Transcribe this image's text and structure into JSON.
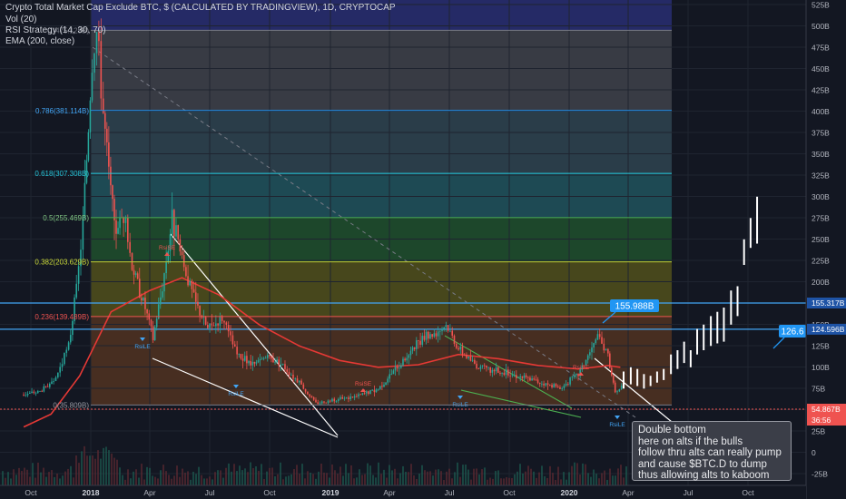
{
  "header": {
    "title": "Crypto Total Market Cap Exclude BTC, $ (CALCULATED BY TRADINGVIEW), 1D, CRYPTOCAP",
    "indicators": [
      "Vol (20)",
      "RSI Strategy (14, 30, 70)",
      "EMA (200, close)"
    ]
  },
  "colors": {
    "background": "#131722",
    "ema": "#e53935",
    "trendline": "#ffffff",
    "dashed_line": "#787b86",
    "hline": "#42a5f5",
    "label_fill": "#2196f3",
    "price_up": "#26a69a",
    "price_down": "#ef5350"
  },
  "chart_data": {
    "type": "line",
    "title": "Crypto Total Market Cap Exclude BTC, $ (CALCULATED BY TRADINGVIEW), 1D, CRYPTOCAP",
    "x_ticks": [
      "Oct",
      "2018",
      "Apr",
      "Jul",
      "Oct",
      "2019",
      "Apr",
      "Jul",
      "Oct",
      "2020",
      "Apr",
      "Jul",
      "Oct"
    ],
    "y_ticks": [
      "525B",
      "500B",
      "475B",
      "450B",
      "425B",
      "400B",
      "375B",
      "350B",
      "325B",
      "300B",
      "275B",
      "250B",
      "225B",
      "200B",
      "175B",
      "150B",
      "125B",
      "100B",
      "75B",
      "50B",
      "25B",
      "0",
      "-25B"
    ],
    "ylim_billions": [
      -25,
      525
    ],
    "price_billions": {
      "x": [
        "2017-09-20",
        "2017-10-15",
        "2017-11-05",
        "2017-11-28",
        "2017-12-10",
        "2017-12-20",
        "2018-01-03",
        "2018-01-10",
        "2018-01-20",
        "2018-02-06",
        "2018-02-20",
        "2018-03-05",
        "2018-03-25",
        "2018-04-06",
        "2018-04-20",
        "2018-05-05",
        "2018-05-20",
        "2018-06-10",
        "2018-06-28",
        "2018-07-20",
        "2018-08-12",
        "2018-09-05",
        "2018-09-25",
        "2018-10-15",
        "2018-11-15",
        "2018-12-10",
        "2019-01-10",
        "2019-02-10",
        "2019-03-15",
        "2019-04-10",
        "2019-05-15",
        "2019-06-26",
        "2019-07-15",
        "2019-08-15",
        "2019-09-20",
        "2019-10-15",
        "2019-11-20",
        "2019-12-18",
        "2020-01-15",
        "2020-02-14",
        "2020-03-01",
        "2020-03-12",
        "2020-03-25"
      ],
      "y": [
        48,
        52,
        62,
        105,
        170,
        250,
        440,
        475,
        380,
        240,
        260,
        200,
        150,
        115,
        175,
        255,
        205,
        155,
        125,
        138,
        95,
        82,
        92,
        87,
        62,
        38,
        42,
        46,
        55,
        78,
        108,
        130,
        102,
        80,
        74,
        70,
        62,
        55,
        72,
        115,
        95,
        48,
        60
      ]
    },
    "ema_billions": {
      "x": [
        "2017-09-20",
        "2017-11-01",
        "2017-12-15",
        "2018-02-01",
        "2018-04-01",
        "2018-05-20",
        "2018-07-15",
        "2018-09-15",
        "2018-11-15",
        "2019-01-15",
        "2019-03-15",
        "2019-05-15",
        "2019-07-15",
        "2019-09-15",
        "2019-11-15",
        "2020-01-15",
        "2020-03-01",
        "2020-03-20"
      ],
      "y": [
        10,
        25,
        70,
        145,
        170,
        185,
        165,
        130,
        105,
        88,
        80,
        83,
        95,
        90,
        82,
        78,
        82,
        80
      ]
    },
    "fibonacci": [
      {
        "label": "1(475.128B)",
        "value": 475.128
      },
      {
        "label": "0.786(381.114B)",
        "value": 381.114
      },
      {
        "label": "0.618(307.308B)",
        "value": 307.308
      },
      {
        "label": "0.5(255.469B)",
        "value": 255.469
      },
      {
        "label": "0.382(203.629B)",
        "value": 203.629
      },
      {
        "label": "0.236(139.489B)",
        "value": 139.489
      },
      {
        "label": "0(35.809B)",
        "value": 35.809
      }
    ],
    "horizontal_lines": [
      {
        "value": 155.317,
        "label": "155.317B"
      },
      {
        "value": 124.596,
        "label": "124.596B"
      }
    ],
    "price_tags": [
      {
        "value": 54.867,
        "label": "54.867B",
        "color": "#ef5350"
      },
      {
        "value": 36.56,
        "label": "36:56",
        "color": "#ef5350"
      }
    ],
    "callouts": [
      {
        "label": "155.988B"
      },
      {
        "label": "126.6"
      }
    ],
    "signals": [
      {
        "label": "RsiLE",
        "kind": "long"
      },
      {
        "label": "RsiSE",
        "kind": "short"
      },
      {
        "label": "RsiLE",
        "kind": "long"
      },
      {
        "label": "RsiSE",
        "kind": "short"
      },
      {
        "label": "RsiLE",
        "kind": "long"
      },
      {
        "label": "RsiSE",
        "kind": "short"
      },
      {
        "label": "RsiLE",
        "kind": "long"
      }
    ],
    "projection_billions": [
      {
        "x": "2020-03-25",
        "low": 55,
        "high": 75
      },
      {
        "x": "2020-04-05",
        "low": 60,
        "high": 80
      },
      {
        "x": "2020-04-15",
        "low": 58,
        "high": 78
      },
      {
        "x": "2020-04-25",
        "low": 55,
        "high": 72
      },
      {
        "x": "2020-05-05",
        "low": 58,
        "high": 70
      },
      {
        "x": "2020-05-15",
        "low": 62,
        "high": 75
      },
      {
        "x": "2020-05-25",
        "low": 65,
        "high": 78
      },
      {
        "x": "2020-06-05",
        "low": 72,
        "high": 95
      },
      {
        "x": "2020-06-15",
        "low": 78,
        "high": 100
      },
      {
        "x": "2020-06-25",
        "low": 85,
        "high": 110
      },
      {
        "x": "2020-07-05",
        "low": 80,
        "high": 100
      },
      {
        "x": "2020-07-15",
        "low": 95,
        "high": 125
      },
      {
        "x": "2020-07-25",
        "low": 100,
        "high": 130
      },
      {
        "x": "2020-08-05",
        "low": 105,
        "high": 140
      },
      {
        "x": "2020-08-15",
        "low": 108,
        "high": 145
      },
      {
        "x": "2020-08-25",
        "low": 110,
        "high": 150
      },
      {
        "x": "2020-09-05",
        "low": 130,
        "high": 170
      },
      {
        "x": "2020-09-15",
        "low": 140,
        "high": 175
      },
      {
        "x": "2020-09-25",
        "low": 200,
        "high": 230
      },
      {
        "x": "2020-10-05",
        "low": 220,
        "high": 255
      },
      {
        "x": "2020-10-15",
        "low": 225,
        "high": 280
      }
    ]
  },
  "note": {
    "lines": [
      "Double bottom",
      "here on alts if the bulls",
      "follow thru alts can really pump",
      "and cause $BTC.D to dump",
      "thus allowing alts to kaboom"
    ]
  }
}
